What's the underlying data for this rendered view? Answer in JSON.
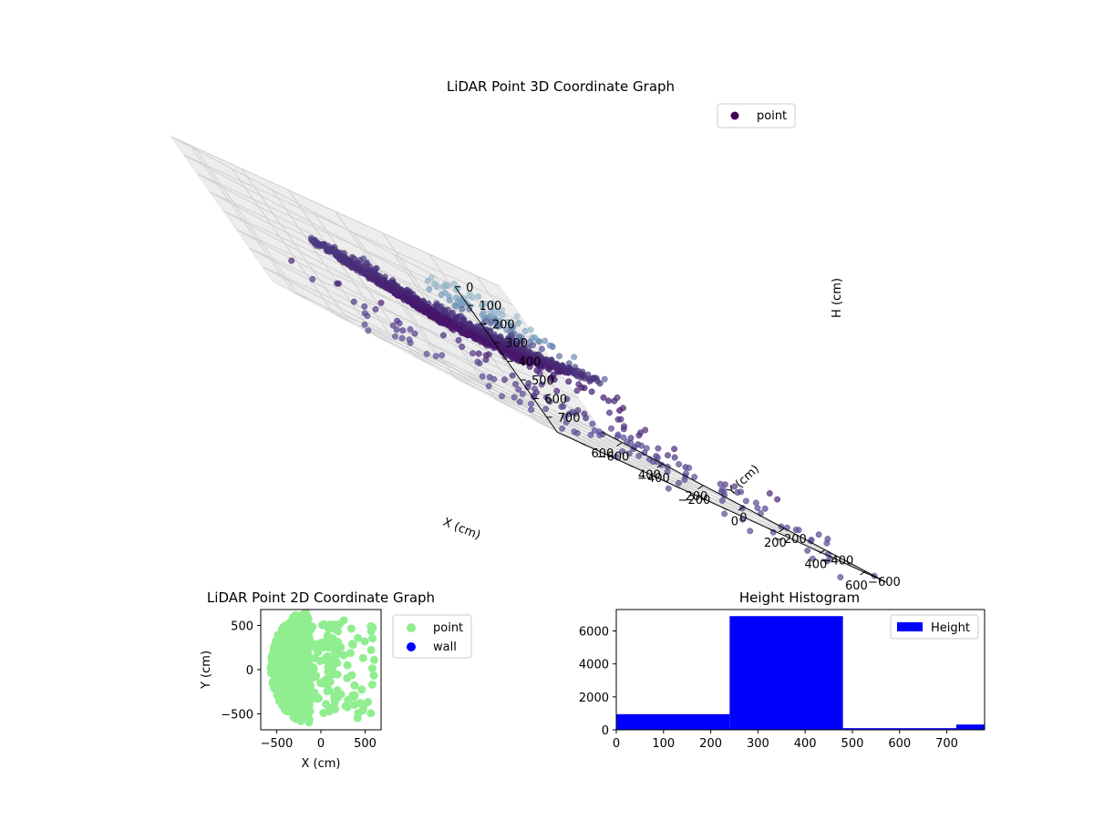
{
  "chart_data": [
    {
      "type": "scatter",
      "title": "LiDAR Point 3D Coordinate Graph",
      "xlabel": "X (cm)",
      "ylabel": "Y (cm)",
      "zlabel": "H (cm)",
      "xlim": [
        -700,
        700
      ],
      "ylim": [
        -700,
        700
      ],
      "zlim": [
        0,
        780
      ],
      "z_axis_inverted": true,
      "x_ticks": [
        -600,
        -400,
        -200,
        0,
        200,
        400,
        600
      ],
      "x_tick_labels": [
        "−600",
        "−400",
        "−200",
        "0",
        "200",
        "400",
        "600"
      ],
      "y_ticks": [
        -600,
        -400,
        -200,
        0,
        200,
        400,
        600
      ],
      "y_tick_labels": [
        "−600",
        "−400",
        "−200",
        "0",
        "200",
        "400",
        "600"
      ],
      "z_ticks": [
        0,
        100,
        200,
        300,
        400,
        500,
        600,
        700
      ],
      "z_tick_labels": [
        "0",
        "100",
        "200",
        "300",
        "400",
        "500",
        "600",
        "700"
      ],
      "colormap": "viridis (by height)",
      "grid": true,
      "legend": {
        "position": "top-right",
        "entries": [
          {
            "label": "point",
            "color": "#440154"
          }
        ]
      },
      "series": [
        {
          "name": "point",
          "description": "approx. 9,600 LiDAR returns; dense dome roughly within X −550..200, Y −400..600, H 250..470; sparse ceiling/wall points at H ≈ 0..150 near X ≈ 400..700"
        }
      ]
    },
    {
      "type": "scatter",
      "title": "LiDAR Point 2D Coordinate Graph",
      "xlabel": "X (cm)",
      "ylabel": "Y (cm)",
      "xlim": [
        -680,
        680
      ],
      "ylim": [
        -680,
        680
      ],
      "x_ticks": [
        -500,
        0,
        500
      ],
      "x_tick_labels": [
        "−500",
        "0",
        "500"
      ],
      "y_ticks": [
        -500,
        0,
        500
      ],
      "y_tick_labels": [
        "−500",
        "0",
        "500"
      ],
      "legend": {
        "position": "outside-right",
        "entries": [
          {
            "label": "point",
            "color": "#90ee90"
          },
          {
            "label": "wall",
            "color": "#0000ff"
          }
        ]
      },
      "series": [
        {
          "name": "point",
          "color": "#90ee90",
          "description": "dense half-disc of points from X ≈ −560 to 650, Y ≈ −620 to 680"
        },
        {
          "name": "wall",
          "color": "#0000ff",
          "points": []
        }
      ]
    },
    {
      "type": "bar",
      "title": "Height Histogram",
      "xlabel": "",
      "ylabel": "",
      "xlim": [
        0,
        780
      ],
      "ylim": [
        0,
        7300
      ],
      "x_ticks": [
        0,
        100,
        200,
        300,
        400,
        500,
        600,
        700
      ],
      "x_tick_labels": [
        "0",
        "100",
        "200",
        "300",
        "400",
        "500",
        "600",
        "700"
      ],
      "y_ticks": [
        0,
        2000,
        4000,
        6000
      ],
      "y_tick_labels": [
        "0",
        "2000",
        "4000",
        "6000"
      ],
      "bin_edges": [
        0,
        240,
        480,
        720,
        780
      ],
      "values": [
        950,
        6900,
        100,
        320
      ],
      "color": "#0000ff",
      "legend": {
        "position": "top-right",
        "entries": [
          {
            "label": "Height",
            "color": "#0000ff"
          }
        ]
      }
    }
  ]
}
